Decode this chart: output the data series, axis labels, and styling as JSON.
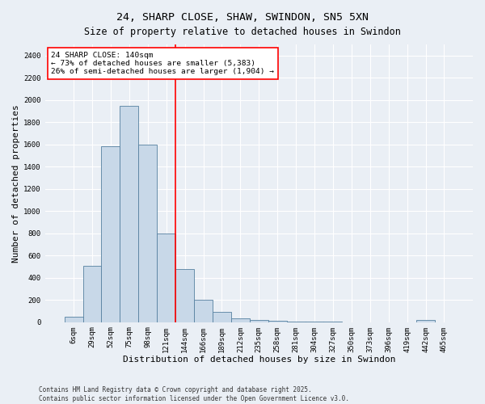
{
  "title": "24, SHARP CLOSE, SHAW, SWINDON, SN5 5XN",
  "subtitle": "Size of property relative to detached houses in Swindon",
  "xlabel": "Distribution of detached houses by size in Swindon",
  "ylabel": "Number of detached properties",
  "footer": "Contains HM Land Registry data © Crown copyright and database right 2025.\nContains public sector information licensed under the Open Government Licence v3.0.",
  "bin_labels": [
    "6sqm",
    "29sqm",
    "52sqm",
    "75sqm",
    "98sqm",
    "121sqm",
    "144sqm",
    "166sqm",
    "189sqm",
    "212sqm",
    "235sqm",
    "258sqm",
    "281sqm",
    "304sqm",
    "327sqm",
    "350sqm",
    "373sqm",
    "396sqm",
    "419sqm",
    "442sqm",
    "465sqm"
  ],
  "bar_heights": [
    50,
    510,
    1580,
    1950,
    1600,
    800,
    480,
    200,
    90,
    35,
    20,
    10,
    5,
    3,
    2,
    1,
    0,
    0,
    0,
    20,
    0
  ],
  "bar_color": "#c8d8e8",
  "bar_edge_color": "#5580a0",
  "vline_color": "red",
  "annotation_text": "24 SHARP CLOSE: 140sqm\n← 73% of detached houses are smaller (5,383)\n26% of semi-detached houses are larger (1,904) →",
  "annotation_box_color": "white",
  "annotation_box_edge_color": "red",
  "ylim": [
    0,
    2500
  ],
  "yticks": [
    0,
    200,
    400,
    600,
    800,
    1000,
    1200,
    1400,
    1600,
    1800,
    2000,
    2200,
    2400
  ],
  "bg_color": "#eaeff5",
  "grid_color": "white",
  "title_fontsize": 9.5,
  "axis_label_fontsize": 8,
  "tick_fontsize": 6.5,
  "footer_fontsize": 5.5,
  "annotation_fontsize": 6.8
}
